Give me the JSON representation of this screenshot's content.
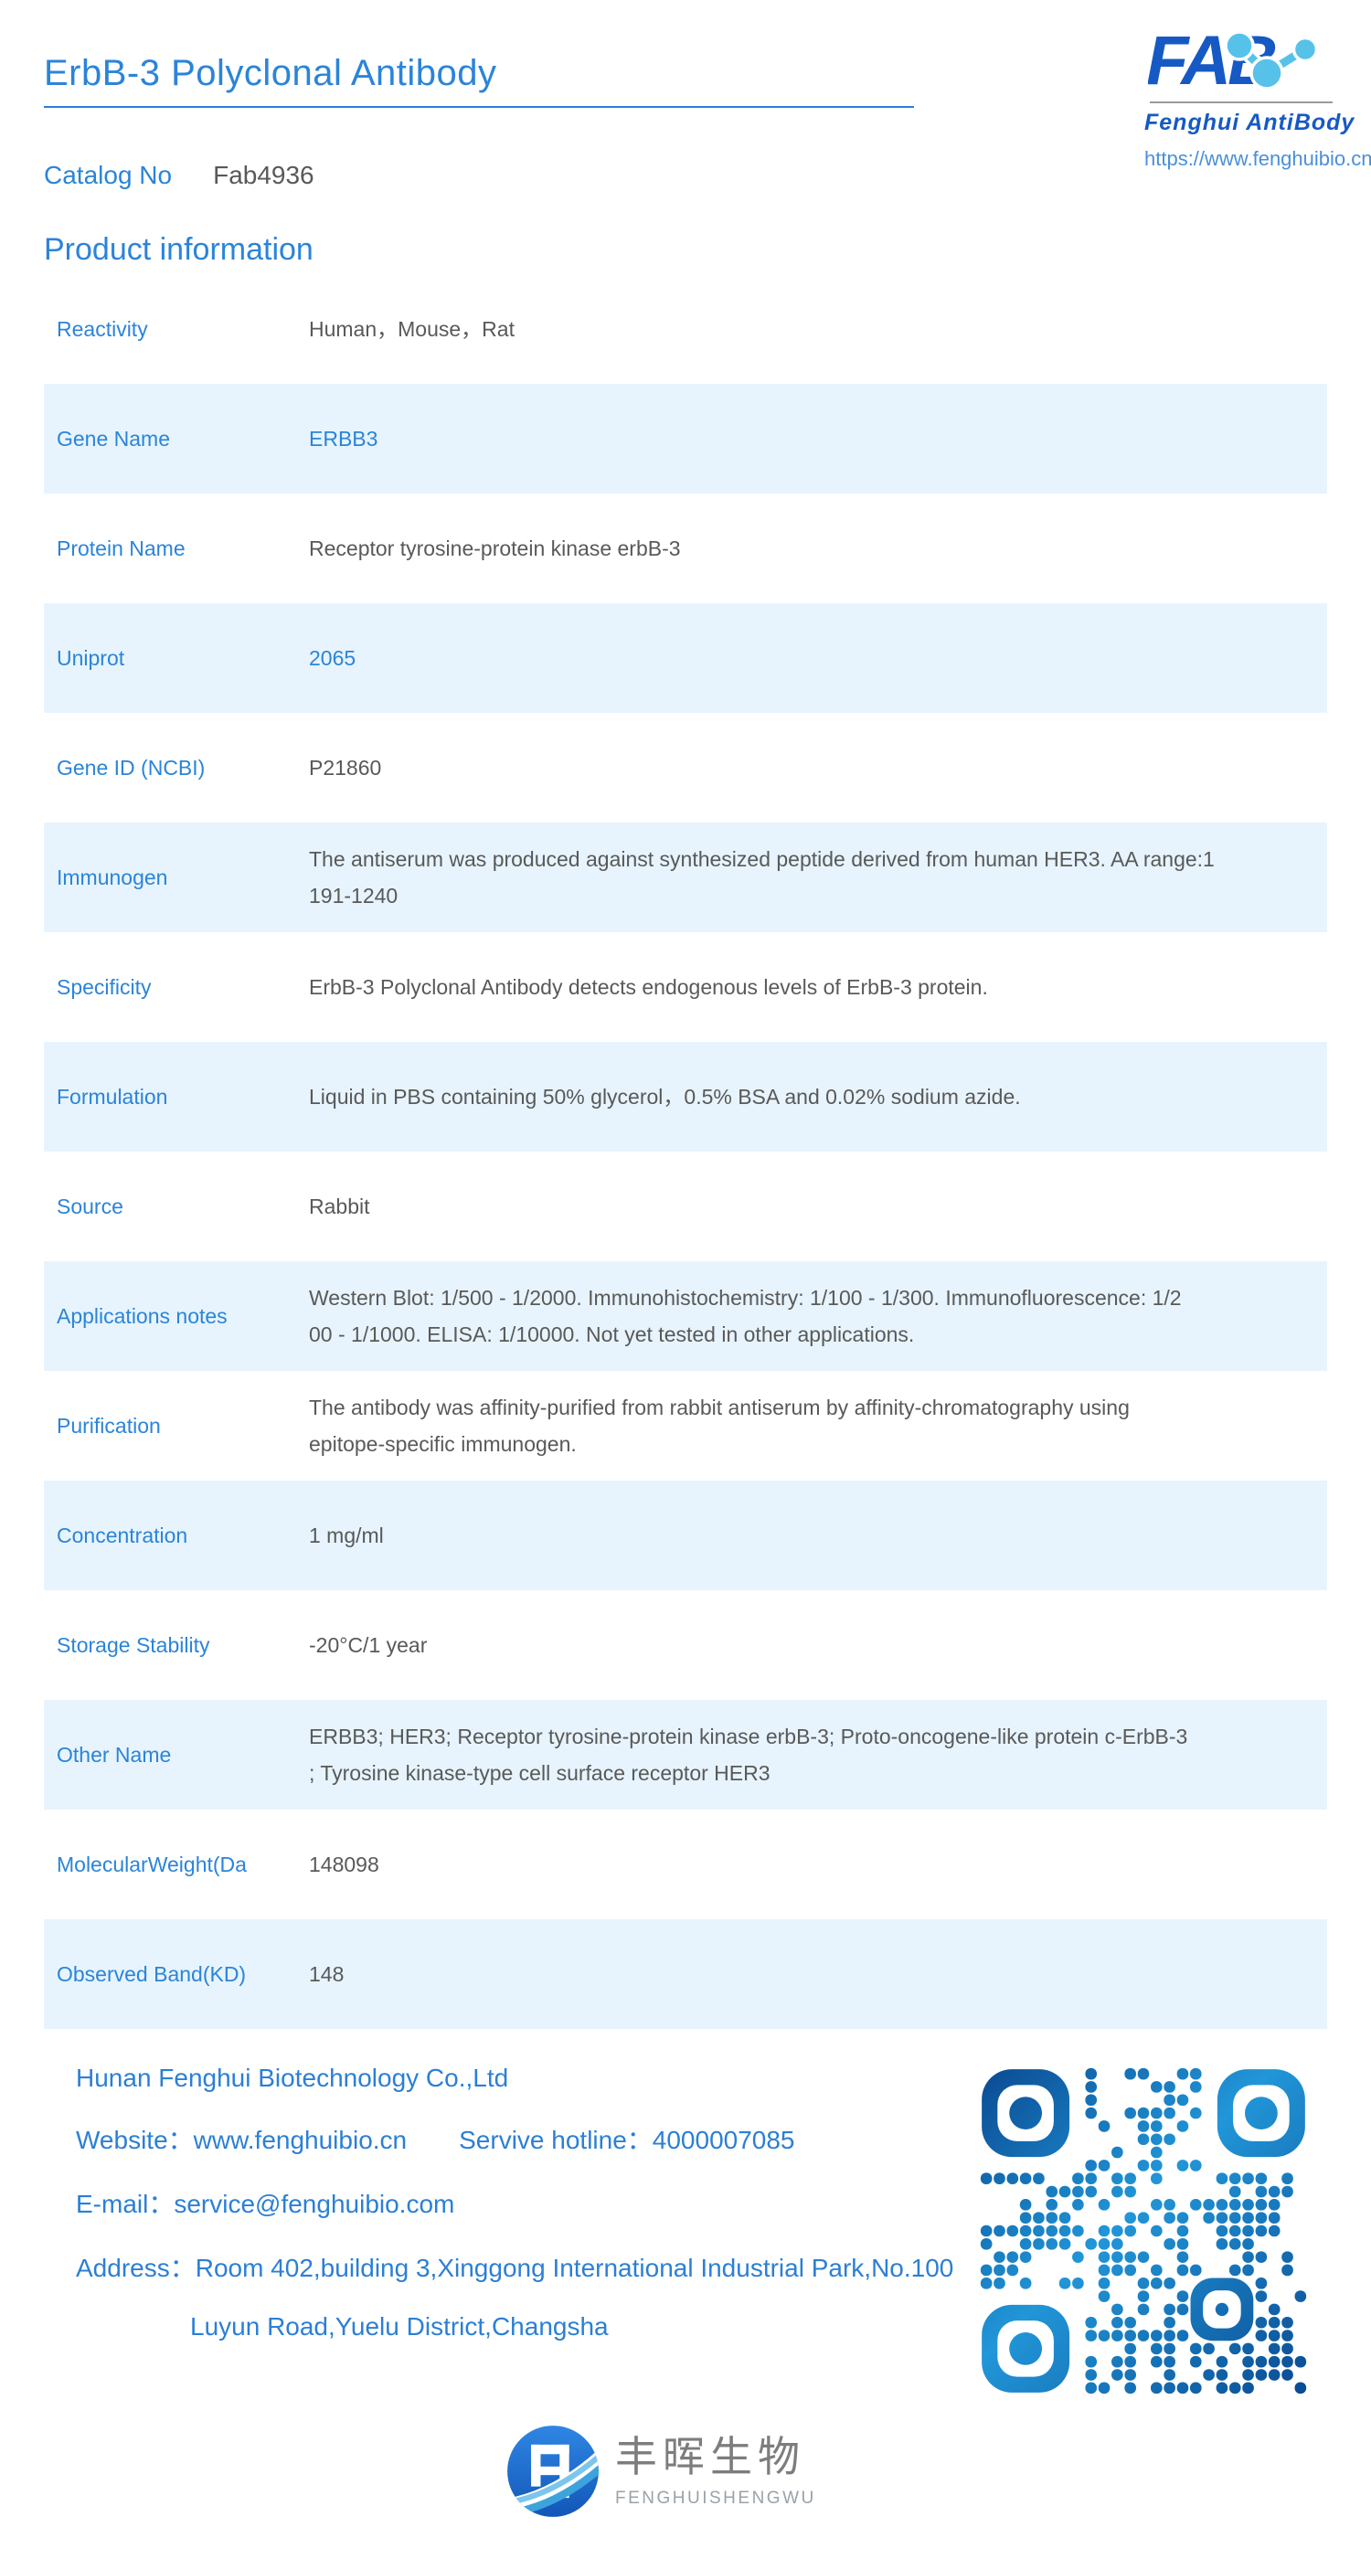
{
  "page": {
    "title": "ErbB-3 Polyclonal Antibody"
  },
  "brand": {
    "logo_text": "FAB",
    "logo_subtitle": "Fenghui AntiBody",
    "site_url": "https://www.fenghuibio.cn"
  },
  "catalog": {
    "label": "Catalog No",
    "value": "Fab4936"
  },
  "section_heading": "Product information",
  "product_table": {
    "rows": [
      {
        "label": "Reactivity",
        "value": "Human，Mouse，Rat",
        "highlight": false
      },
      {
        "label": "Gene Name",
        "value": "ERBB3",
        "highlight": true
      },
      {
        "label": "Protein Name",
        "value": "Receptor tyrosine-protein kinase erbB-3",
        "highlight": false
      },
      {
        "label": "Uniprot",
        "value": "2065",
        "highlight": true
      },
      {
        "label": "Gene ID (NCBI)",
        "value": "P21860",
        "highlight": false
      },
      {
        "label": "Immunogen",
        "value": "The antiserum was produced against synthesized peptide derived from human HER3. AA range:1\n191-1240",
        "highlight": false
      },
      {
        "label": "Specificity",
        "value": "ErbB-3 Polyclonal Antibody detects endogenous levels of ErbB-3 protein.",
        "highlight": false
      },
      {
        "label": "Formulation",
        "value": "Liquid in PBS containing 50% glycerol，0.5% BSA and 0.02% sodium azide.",
        "highlight": false
      },
      {
        "label": "Source",
        "value": "Rabbit",
        "highlight": false
      },
      {
        "label": "Applications notes",
        "value": "Western Blot: 1/500 - 1/2000. Immunohistochemistry: 1/100 - 1/300. Immunofluorescence: 1/2\n00 - 1/1000. ELISA: 1/10000. Not yet tested in other applications.",
        "highlight": false
      },
      {
        "label": "Purification",
        "value": "The antibody was affinity-purified from rabbit antiserum by affinity-chromatography using\nepitope-specific immunogen.",
        "highlight": false
      },
      {
        "label": "Concentration",
        "value": "1 mg/ml",
        "highlight": false
      },
      {
        "label": "Storage Stability",
        "value": "-20°C/1 year",
        "highlight": false
      },
      {
        "label": "Other Name",
        "value": "ERBB3; HER3; Receptor tyrosine-protein kinase erbB-3; Proto-oncogene-like protein c-ErbB-3\n; Tyrosine kinase-type cell surface receptor HER3",
        "highlight": false
      },
      {
        "label": "MolecularWeight(Da",
        "value": "148098",
        "highlight": false
      },
      {
        "label": "Observed Band(KD)",
        "value": "148",
        "highlight": false
      }
    ]
  },
  "footer": {
    "company": "Hunan Fenghui Biotechnology Co.,Ltd",
    "website": "Website：www.fenghuibio.cn",
    "hotline": "Servive hotline：4000007085",
    "email": "E-mail：service@fenghuibio.com",
    "address_line1": "Address：Room 402,building 3,Xinggong International Industrial Park,No.100",
    "address_line2": "Luyun Road,Yuelu District,Changsha"
  },
  "brand_footer": {
    "cn_name": "丰晖生物",
    "en_name": "FENGHUISHENGWU"
  },
  "icons": {
    "qr": "qr-code",
    "fab_logo": "fab-molecule-logo",
    "fh_badge": "fenghui-circle-logo"
  },
  "colors": {
    "accent": "#2b84d9",
    "rule": "#2980d9",
    "row_bg": "#e7f4fd",
    "value_text": "#595959",
    "logo_blue": "#1659c4",
    "logo_light_blue": "#57c2e9",
    "footer_text": "#2b7fd6",
    "qr_dark": "#0a4a92",
    "qr_light": "#2196d8"
  }
}
